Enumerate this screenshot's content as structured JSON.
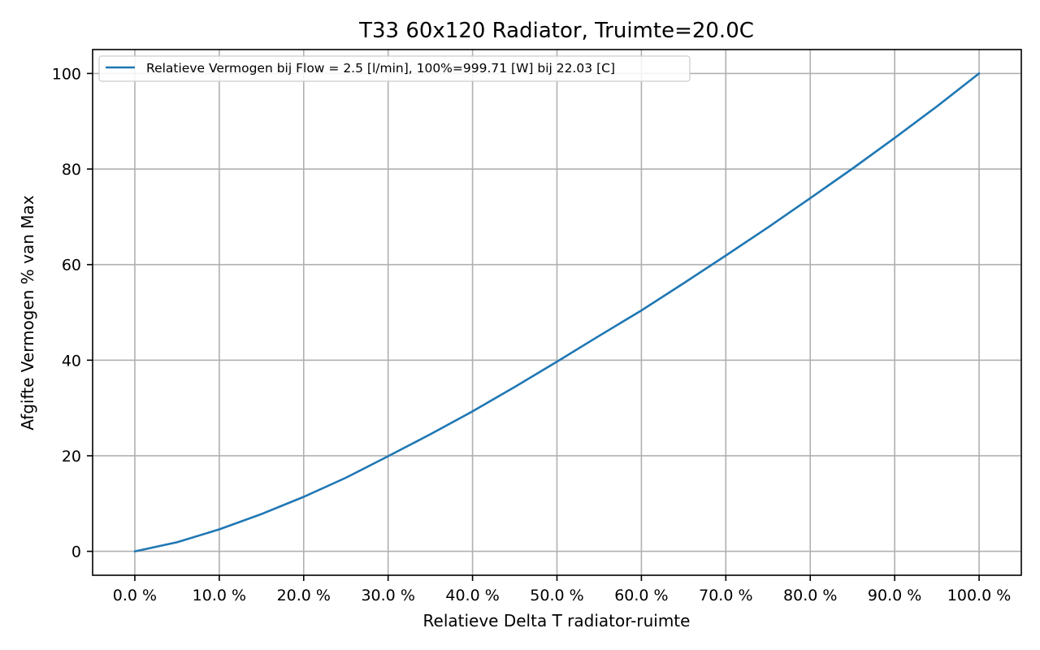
{
  "chart_data": {
    "type": "line",
    "title": "T33 60x120 Radiator, Truimte=20.0C",
    "xlabel": "Relatieve Delta T radiator-ruimte",
    "ylabel": "Afgifte Vermogen % van Max",
    "xlim": [
      -0.05,
      1.05
    ],
    "ylim": [
      -5,
      105
    ],
    "x_ticks": [
      0,
      0.1,
      0.2,
      0.3,
      0.4,
      0.5,
      0.6,
      0.7,
      0.8,
      0.9,
      1.0
    ],
    "x_tick_labels": [
      "0.0 %",
      "10.0 %",
      "20.0 %",
      "30.0 %",
      "40.0 %",
      "50.0 %",
      "60.0 %",
      "70.0 %",
      "80.0 %",
      "90.0 %",
      "100.0 %"
    ],
    "y_ticks": [
      0,
      20,
      40,
      60,
      80,
      100
    ],
    "y_tick_labels": [
      "0",
      "20",
      "40",
      "60",
      "80",
      "100"
    ],
    "grid": true,
    "legend_position": "top-left",
    "series": [
      {
        "name": "Relatieve Vermogen bij Flow = 2.5 [l/min], 100%=999.71 [W] bij 22.03 [C]",
        "color": "#1f77b4",
        "x": [
          0,
          0.05,
          0.1,
          0.15,
          0.2,
          0.25,
          0.3,
          0.35,
          0.4,
          0.45,
          0.5,
          0.55,
          0.6,
          0.65,
          0.7,
          0.75,
          0.8,
          0.85,
          0.9,
          0.95,
          1.0
        ],
        "y": [
          0,
          1.9,
          4.6,
          7.8,
          11.4,
          15.4,
          19.9,
          24.5,
          29.3,
          34.4,
          39.7,
          45.1,
          50.4,
          56.1,
          61.9,
          67.8,
          73.9,
          80.1,
          86.5,
          93.1,
          100
        ]
      }
    ]
  }
}
